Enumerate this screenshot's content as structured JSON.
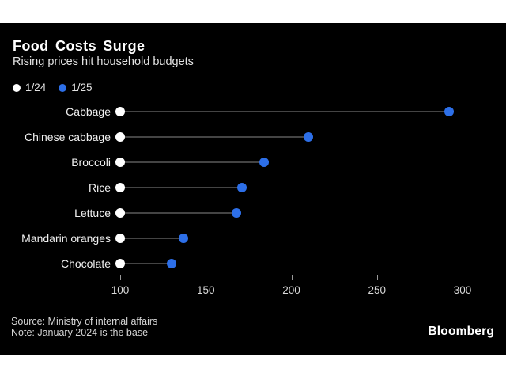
{
  "header": {
    "title": "Food Costs Surge",
    "subtitle": "Rising prices hit household budgets"
  },
  "legend": {
    "items": [
      {
        "label": "1/24",
        "color": "#ffffff"
      },
      {
        "label": "1/25",
        "color": "#2d6fe8"
      }
    ]
  },
  "chart_data": {
    "type": "dumbbell",
    "title": "Food Costs Surge",
    "subtitle": "Rising prices hit household budgets",
    "categories": [
      "Cabbage",
      "Chinese cabbage",
      "Broccoli",
      "Rice",
      "Lettuce",
      "Mandarin oranges",
      "Chocolate"
    ],
    "series": [
      {
        "name": "1/24",
        "color": "#ffffff",
        "values": [
          100,
          100,
          100,
          100,
          100,
          100,
          100
        ]
      },
      {
        "name": "1/25",
        "color": "#2d6fe8",
        "values": [
          292,
          210,
          184,
          171,
          168,
          137,
          130
        ]
      }
    ],
    "x_ticks": [
      100,
      150,
      200,
      250,
      300
    ],
    "xlim": [
      100,
      325
    ],
    "grid": false,
    "legend_position": "top-left",
    "orientation": "horizontal"
  },
  "footer": {
    "source": "Source: Ministry of internal affairs",
    "note": "Note: January 2024 is the base",
    "brand": "Bloomberg"
  },
  "colors": {
    "page_background": "#ffffff",
    "chart_background": "#000000",
    "dot_1_24": "#ffffff",
    "dot_1_25": "#2d6fe8",
    "connector": "#444444",
    "tick_mark": "#999999"
  }
}
